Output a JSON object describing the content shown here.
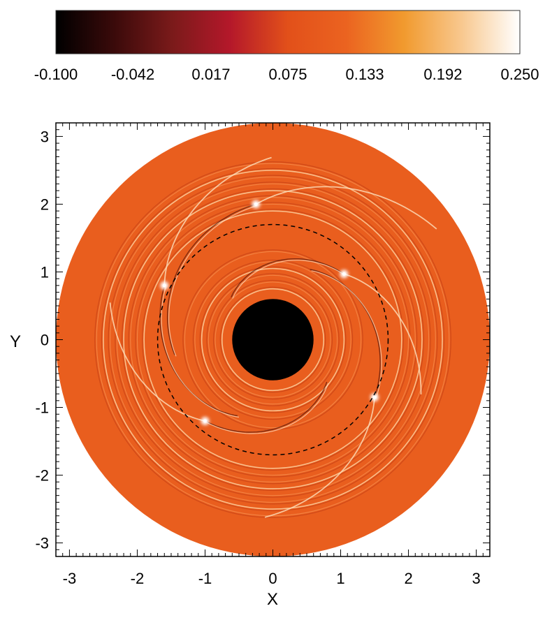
{
  "chart_data": {
    "type": "heatmap",
    "title": "",
    "xlabel": "X",
    "ylabel": "Y",
    "xlim": [
      -3.2,
      3.2
    ],
    "ylim": [
      -3.2,
      3.2
    ],
    "x_ticks": [
      -3,
      -2,
      -1,
      0,
      1,
      2,
      3
    ],
    "y_ticks": [
      -3,
      -2,
      -1,
      0,
      1,
      2,
      3
    ],
    "x_tick_labels": [
      "-3",
      "-2",
      "-1",
      "0",
      "1",
      "2",
      "3"
    ],
    "y_tick_labels": [
      "-3",
      "-2",
      "-1",
      "0",
      "1",
      "2",
      "3"
    ],
    "colorbar": {
      "placement": "top",
      "range": [
        -0.1,
        0.25
      ],
      "tick_values": [
        -0.1,
        -0.042,
        0.017,
        0.075,
        0.133,
        0.192,
        0.25
      ],
      "tick_labels": [
        "-0.100",
        "-0.042",
        "0.017",
        "0.075",
        "0.133",
        "0.192",
        "0.250"
      ],
      "colors": [
        "#000000",
        "#3a0a0a",
        "#7a1a1a",
        "#b4182a",
        "#e2501a",
        "#eb6320",
        "#f19a2e",
        "#f8c88f",
        "#ffffff"
      ]
    },
    "disk": {
      "outer_radius": 3.2,
      "inner_hole_radius": 0.6,
      "background_value": 0.133,
      "background_color": "#e95e1e",
      "hole_color": "#000000"
    },
    "dashed_circle_radius": 1.7,
    "bright_features": [
      {
        "x": -0.25,
        "y": 2.0
      },
      {
        "x": -1.6,
        "y": 0.8
      },
      {
        "x": 1.05,
        "y": 0.97
      },
      {
        "x": 1.5,
        "y": -0.85
      },
      {
        "x": -1.0,
        "y": -1.2
      }
    ],
    "ring_radii": [
      0.75,
      0.85,
      0.95,
      1.05,
      1.15,
      1.3,
      1.9,
      2.0,
      2.1,
      2.2,
      2.3,
      2.4,
      2.5,
      2.6
    ]
  }
}
